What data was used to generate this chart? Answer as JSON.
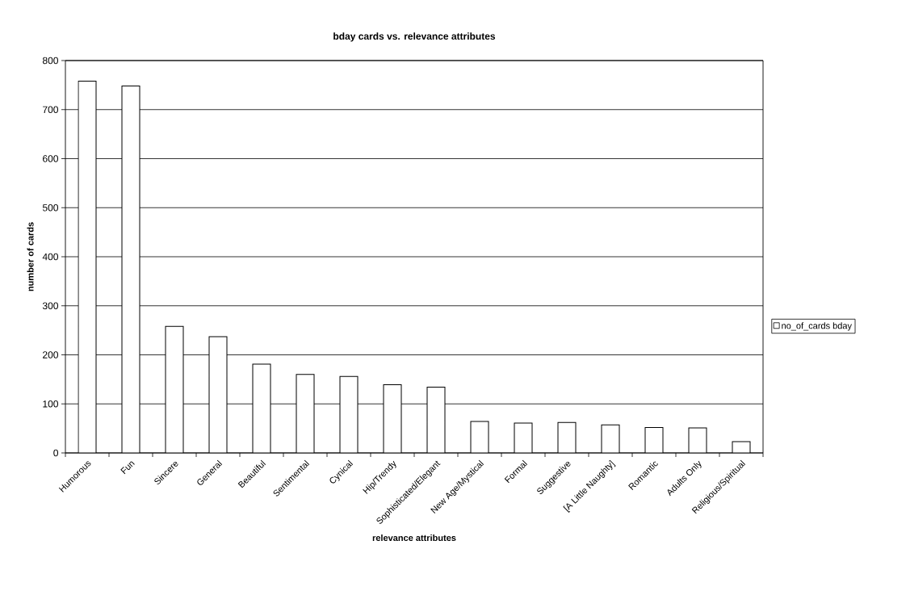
{
  "chart_data": {
    "type": "bar",
    "title": "bday cards vs. relevance attributes",
    "xlabel": "relevance attributes",
    "ylabel": "number of cards",
    "categories": [
      "Humorous",
      "Fun",
      "Sincere",
      "General",
      "Beautiful",
      "Sentimental",
      "Cynical",
      "Hip/Trendy",
      "Sophisticated/Elegant",
      "New Age/Mystical",
      "Formal",
      "Suggestive",
      "[A Little Naughty]",
      "Romantic",
      "Adults Only",
      "Religious/Spiritual"
    ],
    "series": [
      {
        "name": "no_of_cards bday",
        "color": "#ffffff",
        "values": [
          758,
          748,
          258,
          237,
          181,
          160,
          156,
          139,
          134,
          64,
          61,
          62,
          57,
          52,
          51,
          23
        ]
      }
    ],
    "ylim": [
      0,
      800
    ],
    "yticks": [
      0,
      100,
      200,
      300,
      400,
      500,
      600,
      700,
      800
    ],
    "grid": "y",
    "legend": "right"
  }
}
